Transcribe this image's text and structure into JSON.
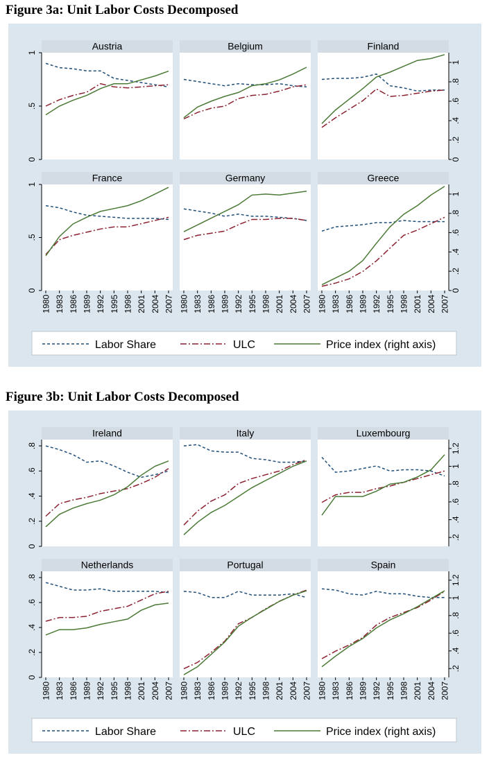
{
  "legend": {
    "labor_share": "Labor Share",
    "ulc": "ULC",
    "price": "Price index (right axis)"
  },
  "colors": {
    "labor_share": "#1f4e79",
    "ulc": "#8b2130",
    "price": "#4a7a35",
    "panel_bg": "#dbe6ee",
    "strip_bg": "#d3dce4"
  },
  "x_ticks": [
    "1980",
    "1983",
    "1986",
    "1989",
    "1992",
    "1995",
    "1998",
    "2001",
    "2004",
    "2007"
  ],
  "fig3a": {
    "title": "Figure 3a: Unit Labor Costs Decomposed",
    "left_ticks": [
      "0",
      ".5",
      "1"
    ],
    "right_ticks": [
      "0",
      ".2",
      ".4",
      ".6",
      ".8",
      "1"
    ]
  },
  "fig3b": {
    "title": "Figure 3b: Unit Labor Costs Decomposed",
    "left_ticks": [
      "0",
      ".2",
      ".4",
      ".6",
      ".8"
    ],
    "right_ticks": [
      ".2",
      ".4",
      ".6",
      ".8",
      "1",
      "1.2"
    ]
  },
  "chart_data": [
    {
      "type": "line",
      "figure": "fig3a",
      "x_range": [
        1980,
        2007
      ],
      "left_axis_range": [
        0,
        1
      ],
      "right_axis_range": [
        0,
        1.1
      ],
      "panels": [
        {
          "title": "Austria",
          "years": [
            1980,
            1983,
            1986,
            1989,
            1992,
            1995,
            1998,
            2001,
            2004,
            2007
          ],
          "labor_share": [
            0.9,
            0.86,
            0.85,
            0.83,
            0.83,
            0.76,
            0.74,
            0.72,
            0.7,
            0.68
          ],
          "ulc": [
            0.5,
            0.56,
            0.6,
            0.63,
            0.71,
            0.68,
            0.67,
            0.68,
            0.69,
            0.7
          ],
          "price": [
            0.46,
            0.55,
            0.61,
            0.66,
            0.73,
            0.78,
            0.78,
            0.82,
            0.86,
            0.91
          ]
        },
        {
          "title": "Belgium",
          "years": [
            1980,
            1983,
            1986,
            1989,
            1992,
            1995,
            1998,
            2001,
            2004,
            2007
          ],
          "labor_share": [
            0.75,
            0.73,
            0.71,
            0.69,
            0.71,
            0.7,
            0.7,
            0.71,
            0.69,
            0.68
          ],
          "ulc": [
            0.38,
            0.44,
            0.48,
            0.5,
            0.57,
            0.6,
            0.61,
            0.64,
            0.68,
            0.7
          ],
          "price": [
            0.43,
            0.54,
            0.6,
            0.65,
            0.69,
            0.76,
            0.78,
            0.82,
            0.88,
            0.95
          ]
        },
        {
          "title": "Finland",
          "years": [
            1980,
            1983,
            1986,
            1989,
            1992,
            1995,
            1998,
            2001,
            2004,
            2007
          ],
          "labor_share": [
            0.75,
            0.76,
            0.76,
            0.77,
            0.8,
            0.69,
            0.67,
            0.64,
            0.65,
            0.65
          ],
          "ulc": [
            0.3,
            0.39,
            0.47,
            0.55,
            0.66,
            0.59,
            0.6,
            0.62,
            0.64,
            0.65
          ],
          "price": [
            0.37,
            0.51,
            0.62,
            0.73,
            0.85,
            0.9,
            0.96,
            1.02,
            1.04,
            1.08
          ]
        }
      ]
    },
    {
      "type": "line",
      "figure": "fig3a",
      "x_range": [
        1980,
        2007
      ],
      "left_axis_range": [
        0,
        1
      ],
      "right_axis_range": [
        0,
        1.1
      ],
      "panels": [
        {
          "title": "France",
          "years": [
            1980,
            1983,
            1986,
            1989,
            1992,
            1995,
            1998,
            2001,
            2004,
            2007
          ],
          "labor_share": [
            0.8,
            0.78,
            0.74,
            0.71,
            0.7,
            0.69,
            0.68,
            0.68,
            0.68,
            0.67
          ],
          "ulc": [
            0.34,
            0.48,
            0.52,
            0.55,
            0.58,
            0.6,
            0.6,
            0.63,
            0.66,
            0.69
          ],
          "price": [
            0.36,
            0.56,
            0.69,
            0.76,
            0.82,
            0.85,
            0.88,
            0.93,
            1.0,
            1.07
          ]
        },
        {
          "title": "Germany",
          "years": [
            1980,
            1983,
            1986,
            1989,
            1992,
            1995,
            1998,
            2001,
            2004,
            2007
          ],
          "labor_share": [
            0.77,
            0.75,
            0.73,
            0.7,
            0.72,
            0.7,
            0.7,
            0.69,
            0.68,
            0.66
          ],
          "ulc": [
            0.48,
            0.52,
            0.54,
            0.56,
            0.62,
            0.67,
            0.67,
            0.68,
            0.68,
            0.66
          ],
          "price": [
            0.61,
            0.68,
            0.75,
            0.82,
            0.89,
            0.99,
            1.0,
            0.99,
            1.01,
            1.03
          ]
        },
        {
          "title": "Greece",
          "years": [
            1980,
            1983,
            1986,
            1989,
            1992,
            1995,
            1998,
            2001,
            2004,
            2007
          ],
          "labor_share": [
            0.56,
            0.6,
            0.61,
            0.62,
            0.64,
            0.64,
            0.66,
            0.65,
            0.65,
            0.65
          ],
          "ulc": [
            0.04,
            0.07,
            0.11,
            0.18,
            0.28,
            0.4,
            0.52,
            0.57,
            0.63,
            0.69
          ],
          "price": [
            0.06,
            0.13,
            0.2,
            0.31,
            0.49,
            0.66,
            0.79,
            0.88,
            0.99,
            1.08
          ]
        }
      ]
    },
    {
      "type": "line",
      "figure": "fig3b",
      "x_range": [
        1980,
        2007
      ],
      "left_axis_range": [
        0,
        0.85
      ],
      "right_axis_range": [
        0.1,
        1.3
      ],
      "panels": [
        {
          "title": "Ireland",
          "years": [
            1980,
            1983,
            1986,
            1989,
            1992,
            1995,
            1998,
            2001,
            2004,
            2007
          ],
          "labor_share": [
            0.8,
            0.77,
            0.73,
            0.67,
            0.68,
            0.64,
            0.59,
            0.55,
            0.57,
            0.6
          ],
          "ulc": [
            0.24,
            0.34,
            0.37,
            0.39,
            0.42,
            0.44,
            0.46,
            0.5,
            0.55,
            0.62
          ],
          "price": [
            0.32,
            0.46,
            0.53,
            0.58,
            0.62,
            0.68,
            0.77,
            0.9,
            1.0,
            1.06
          ]
        },
        {
          "title": "Italy",
          "years": [
            1980,
            1983,
            1986,
            1989,
            1992,
            1995,
            1998,
            2001,
            2004,
            2007
          ],
          "labor_share": [
            0.8,
            0.81,
            0.76,
            0.75,
            0.75,
            0.7,
            0.69,
            0.67,
            0.67,
            0.68
          ],
          "ulc": [
            0.17,
            0.28,
            0.36,
            0.41,
            0.5,
            0.54,
            0.57,
            0.6,
            0.65,
            0.69
          ],
          "price": [
            0.23,
            0.37,
            0.48,
            0.56,
            0.66,
            0.76,
            0.84,
            0.92,
            1.0,
            1.06
          ]
        },
        {
          "title": "Luxembourg",
          "years": [
            1980,
            1983,
            1986,
            1989,
            1992,
            1995,
            1998,
            2001,
            2004,
            2007
          ],
          "labor_share": [
            0.71,
            0.59,
            0.6,
            0.62,
            0.64,
            0.6,
            0.61,
            0.61,
            0.6,
            0.56
          ],
          "ulc": [
            0.35,
            0.41,
            0.43,
            0.43,
            0.46,
            0.48,
            0.51,
            0.54,
            0.57,
            0.6
          ],
          "price": [
            0.45,
            0.66,
            0.66,
            0.66,
            0.72,
            0.8,
            0.82,
            0.88,
            0.96,
            1.13
          ]
        }
      ]
    },
    {
      "type": "line",
      "figure": "fig3b",
      "x_range": [
        1980,
        2007
      ],
      "left_axis_range": [
        0,
        0.85
      ],
      "right_axis_range": [
        0.1,
        1.3
      ],
      "panels": [
        {
          "title": "Netherlands",
          "years": [
            1980,
            1983,
            1986,
            1989,
            1992,
            1995,
            1998,
            2001,
            2004,
            2007
          ],
          "labor_share": [
            0.76,
            0.73,
            0.7,
            0.7,
            0.71,
            0.69,
            0.69,
            0.69,
            0.69,
            0.68
          ],
          "ulc": [
            0.45,
            0.48,
            0.48,
            0.49,
            0.53,
            0.55,
            0.57,
            0.62,
            0.67,
            0.69
          ],
          "price": [
            0.58,
            0.64,
            0.64,
            0.66,
            0.7,
            0.73,
            0.76,
            0.86,
            0.92,
            0.94
          ]
        },
        {
          "title": "Portugal",
          "years": [
            1980,
            1983,
            1986,
            1989,
            1992,
            1995,
            1998,
            2001,
            2004,
            2007
          ],
          "labor_share": [
            0.69,
            0.68,
            0.64,
            0.64,
            0.69,
            0.66,
            0.66,
            0.66,
            0.67,
            0.64
          ],
          "ulc": [
            0.07,
            0.12,
            0.2,
            0.29,
            0.43,
            0.48,
            0.55,
            0.61,
            0.66,
            0.7
          ],
          "price": [
            0.13,
            0.22,
            0.36,
            0.5,
            0.68,
            0.78,
            0.87,
            0.96,
            1.03,
            1.08
          ]
        },
        {
          "title": "Spain",
          "years": [
            1980,
            1983,
            1986,
            1989,
            1992,
            1995,
            1998,
            2001,
            2004,
            2007
          ],
          "labor_share": [
            0.71,
            0.7,
            0.67,
            0.66,
            0.69,
            0.67,
            0.67,
            0.65,
            0.64,
            0.64
          ],
          "ulc": [
            0.15,
            0.21,
            0.26,
            0.32,
            0.42,
            0.48,
            0.52,
            0.56,
            0.62,
            0.69
          ],
          "price": [
            0.22,
            0.34,
            0.45,
            0.54,
            0.66,
            0.75,
            0.82,
            0.9,
            0.99,
            1.08
          ]
        }
      ]
    }
  ]
}
